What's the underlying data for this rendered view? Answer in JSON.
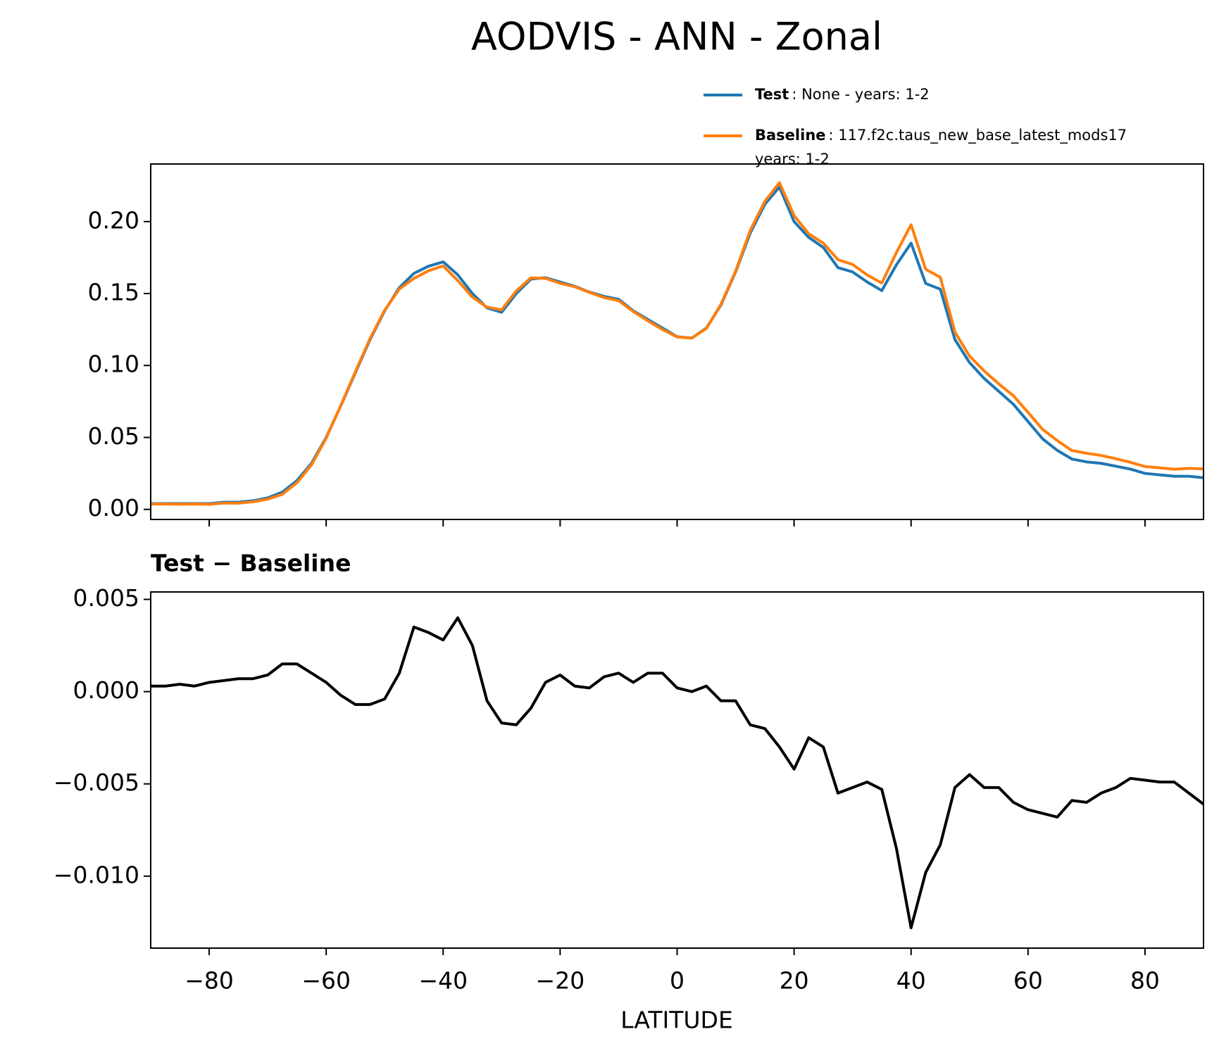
{
  "chart_data": [
    {
      "type": "line",
      "title": "AODVIS - ANN - Zonal",
      "x": [
        -90,
        -87.5,
        -85,
        -82.5,
        -80,
        -77.5,
        -75,
        -72.5,
        -70,
        -67.5,
        -65,
        -62.5,
        -60,
        -57.5,
        -55,
        -52.5,
        -50,
        -47.5,
        -45,
        -42.5,
        -40,
        -37.5,
        -35,
        -32.5,
        -30,
        -27.5,
        -25,
        -22.5,
        -20,
        -17.5,
        -15,
        -12.5,
        -10,
        -7.5,
        -5,
        -2.5,
        0,
        2.5,
        5,
        7.5,
        10,
        12.5,
        15,
        17.5,
        20,
        22.5,
        25,
        27.5,
        30,
        32.5,
        35,
        37.5,
        40,
        42.5,
        45,
        47.5,
        50,
        52.5,
        55,
        57.5,
        60,
        62.5,
        65,
        67.5,
        70,
        72.5,
        75,
        77.5,
        80,
        82.5,
        85,
        87.5,
        90
      ],
      "series": [
        {
          "name": "Test",
          "description": ": None - years: 1-2",
          "color": "#1f77b4",
          "values": [
            0.004,
            0.004,
            0.004,
            0.004,
            0.004,
            0.005,
            0.005,
            0.006,
            0.008,
            0.012,
            0.02,
            0.032,
            0.05,
            0.072,
            0.095,
            0.118,
            0.138,
            0.154,
            0.164,
            0.169,
            0.172,
            0.163,
            0.15,
            0.14,
            0.137,
            0.15,
            0.16,
            0.161,
            0.158,
            0.155,
            0.151,
            0.148,
            0.146,
            0.138,
            0.132,
            0.126,
            0.12,
            0.119,
            0.126,
            0.142,
            0.165,
            0.192,
            0.212,
            0.224,
            0.2,
            0.189,
            0.182,
            0.168,
            0.165,
            0.158,
            0.152,
            0.17,
            0.185,
            0.157,
            0.153,
            0.118,
            0.102,
            0.091,
            0.082,
            0.073,
            0.061,
            0.049,
            0.041,
            0.035,
            0.033,
            0.032,
            0.03,
            0.028,
            0.025,
            0.024,
            0.023,
            0.023,
            0.022
          ]
        },
        {
          "name": "Baseline",
          "description": ": 117.f2c.taus_new_base_latest_mods17",
          "description2": "years: 1-2",
          "color": "#ff7f0e",
          "values": [
            0.0037,
            0.0037,
            0.0036,
            0.0037,
            0.0035,
            0.0044,
            0.0043,
            0.0053,
            0.0071,
            0.0105,
            0.0185,
            0.031,
            0.0495,
            0.0722,
            0.0957,
            0.1187,
            0.1384,
            0.153,
            0.1605,
            0.1658,
            0.1692,
            0.159,
            0.1475,
            0.1405,
            0.1387,
            0.1518,
            0.1609,
            0.1605,
            0.1571,
            0.1547,
            0.1508,
            0.1472,
            0.145,
            0.1375,
            0.131,
            0.125,
            0.1198,
            0.119,
            0.1257,
            0.1425,
            0.1655,
            0.1938,
            0.214,
            0.227,
            0.2042,
            0.1915,
            0.185,
            0.1735,
            0.1702,
            0.1629,
            0.1573,
            0.1785,
            0.1978,
            0.1668,
            0.1613,
            0.1232,
            0.1065,
            0.0962,
            0.0872,
            0.079,
            0.0674,
            0.0556,
            0.0478,
            0.0409,
            0.039,
            0.0375,
            0.0352,
            0.0327,
            0.0298,
            0.0289,
            0.0279,
            0.0285,
            0.0281
          ]
        }
      ],
      "xlim": [
        -90,
        90
      ],
      "ylim": [
        -0.007,
        0.24
      ],
      "yticks": [
        {
          "value": 0,
          "label": "0.00"
        },
        {
          "value": 0.05,
          "label": "0.05"
        },
        {
          "value": 0.1,
          "label": "0.10"
        },
        {
          "value": 0.15,
          "label": "0.15"
        },
        {
          "value": 0.2,
          "label": "0.20"
        }
      ],
      "legend": "upper right"
    },
    {
      "type": "line",
      "subtitle": "Test − Baseline",
      "xlabel": "LATITUDE",
      "x": [
        -90,
        -87.5,
        -85,
        -82.5,
        -80,
        -77.5,
        -75,
        -72.5,
        -70,
        -67.5,
        -65,
        -62.5,
        -60,
        -57.5,
        -55,
        -52.5,
        -50,
        -47.5,
        -45,
        -42.5,
        -40,
        -37.5,
        -35,
        -32.5,
        -30,
        -27.5,
        -25,
        -22.5,
        -20,
        -17.5,
        -15,
        -12.5,
        -10,
        -7.5,
        -5,
        -2.5,
        0,
        2.5,
        5,
        7.5,
        10,
        12.5,
        15,
        17.5,
        20,
        22.5,
        25,
        27.5,
        30,
        32.5,
        35,
        37.5,
        40,
        42.5,
        45,
        47.5,
        50,
        52.5,
        55,
        57.5,
        60,
        62.5,
        65,
        67.5,
        70,
        72.5,
        75,
        77.5,
        80,
        82.5,
        85,
        87.5,
        90
      ],
      "series": [
        {
          "color": "#000000",
          "values": [
            0.0003,
            0.0003,
            0.0004,
            0.0003,
            0.0005,
            0.0006,
            0.0007,
            0.0007,
            0.0009,
            0.0015,
            0.0015,
            0.001,
            0.0005,
            -0.0002,
            -0.0007,
            -0.0007,
            -0.0004,
            0.001,
            0.0035,
            0.0032,
            0.0028,
            0.004,
            0.0025,
            -0.0005,
            -0.0017,
            -0.0018,
            -0.0009,
            0.0005,
            0.0009,
            0.0003,
            0.0002,
            0.0008,
            0.001,
            0.0005,
            0.001,
            0.001,
            0.0002,
            0,
            0.0003,
            -0.0005,
            -0.0005,
            -0.0018,
            -0.002,
            -0.003,
            -0.0042,
            -0.0025,
            -0.003,
            -0.0055,
            -0.0052,
            -0.0049,
            -0.0053,
            -0.0085,
            -0.0128,
            -0.0098,
            -0.0083,
            -0.0052,
            -0.0045,
            -0.0052,
            -0.0052,
            -0.006,
            -0.0064,
            -0.0066,
            -0.0068,
            -0.0059,
            -0.006,
            -0.0055,
            -0.0052,
            -0.0047,
            -0.0048,
            -0.0049,
            -0.0049,
            -0.0055,
            -0.0061
          ]
        }
      ],
      "xlim": [
        -90,
        90
      ],
      "ylim": [
        -0.0139,
        0.0054
      ],
      "xticks": [
        {
          "value": -80,
          "label": "−80"
        },
        {
          "value": -60,
          "label": "−60"
        },
        {
          "value": -40,
          "label": "−40"
        },
        {
          "value": -20,
          "label": "−20"
        },
        0,
        20,
        40,
        60,
        80
      ],
      "yticks": [
        {
          "value": -0.01,
          "label": "−0.010"
        },
        {
          "value": -0.005,
          "label": "−0.005"
        },
        {
          "value": 0,
          "label": "0.000"
        },
        {
          "value": 0.005,
          "label": "0.005"
        }
      ]
    }
  ]
}
